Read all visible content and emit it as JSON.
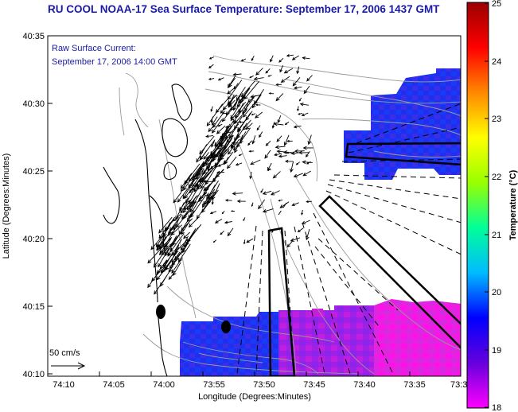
{
  "header": {
    "title": "RU COOL  NOAA-17  Sea Surface Temperature:  September 17, 2006 1437 GMT"
  },
  "map": {
    "current_label_line1": "Raw Surface Current:",
    "current_label_line2": "September 17, 2006 14:00 GMT",
    "scale_label": "50 cm/s",
    "x_axis_title": "Longitude (Degrees:Minutes)",
    "y_axis_title": "Latitude (Degrees:Minutes)",
    "x_ticks": [
      "74:10",
      "74:05",
      "74:00",
      "73:55",
      "73:50",
      "73:45",
      "73:40",
      "73:35",
      "73:3"
    ],
    "y_ticks": [
      "40:35",
      "40:30",
      "40:25",
      "40:20",
      "40:15",
      "40:10"
    ],
    "land_color": "#ffffff",
    "coast_color": "#000000",
    "bathymetry_color": "#9a9a9a"
  },
  "colorbar": {
    "title": "Temperature (°C)",
    "ticks": [
      "25",
      "24",
      "23",
      "22",
      "21",
      "20",
      "19",
      "18"
    ],
    "stops": [
      "#ff00ff",
      "#6600dd",
      "#0000ff",
      "#00bbff",
      "#00ff99",
      "#99ff00",
      "#ffff00",
      "#ff8800",
      "#ff0000",
      "#990000"
    ]
  },
  "icons": {
    "scale_arrow": "right-arrow-icon",
    "buoy_marker": "filled-circle-icon"
  }
}
